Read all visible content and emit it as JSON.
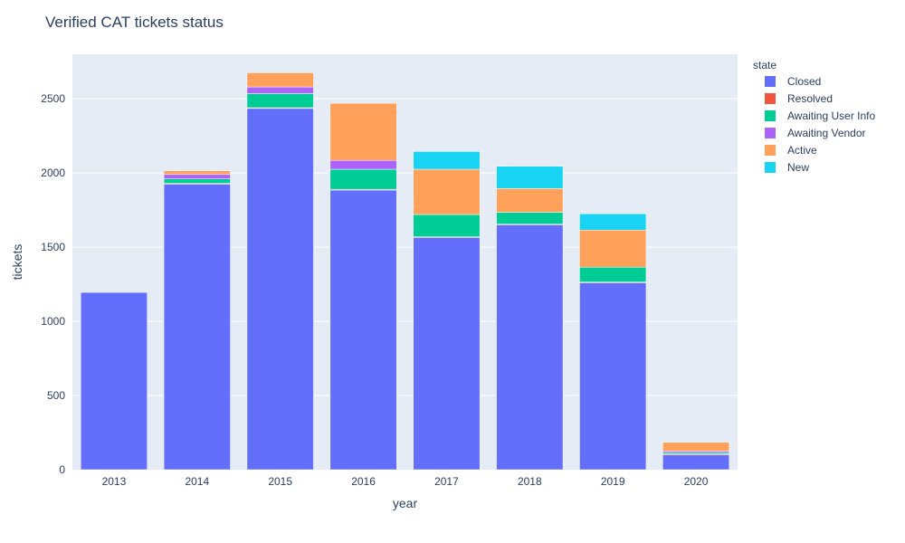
{
  "chart_data": {
    "type": "bar",
    "barmode": "stack",
    "title": "Verified CAT tickets status",
    "xlabel": "year",
    "ylabel": "tickets",
    "categories": [
      "2013",
      "2014",
      "2015",
      "2016",
      "2017",
      "2018",
      "2019",
      "2020"
    ],
    "ylim": [
      0,
      2800
    ],
    "yticks": [
      0,
      500,
      1000,
      1500,
      2000,
      2500
    ],
    "ytick_labels": [
      "0",
      "500",
      "1000",
      "1500",
      "2000",
      "2500"
    ],
    "grid": true,
    "legend_title": "state",
    "legend_position": "right",
    "series": [
      {
        "name": "Closed",
        "color": "#636efa",
        "values": [
          1195,
          1925,
          2435,
          1885,
          1565,
          1650,
          1260,
          100
        ]
      },
      {
        "name": "Resolved",
        "color": "#EF553B",
        "values": [
          0,
          5,
          5,
          5,
          5,
          5,
          5,
          5
        ]
      },
      {
        "name": "Awaiting User Info",
        "color": "#00cc96",
        "values": [
          0,
          30,
          95,
          135,
          150,
          80,
          100,
          10
        ]
      },
      {
        "name": "Awaiting Vendor",
        "color": "#ab63fa",
        "values": [
          0,
          30,
          45,
          60,
          0,
          0,
          0,
          10
        ]
      },
      {
        "name": "Active",
        "color": "#FFA15A",
        "values": [
          0,
          25,
          95,
          385,
          305,
          160,
          250,
          60
        ]
      },
      {
        "name": "New",
        "color": "#19d3f3",
        "values": [
          0,
          0,
          0,
          0,
          120,
          150,
          110,
          0
        ]
      }
    ]
  }
}
